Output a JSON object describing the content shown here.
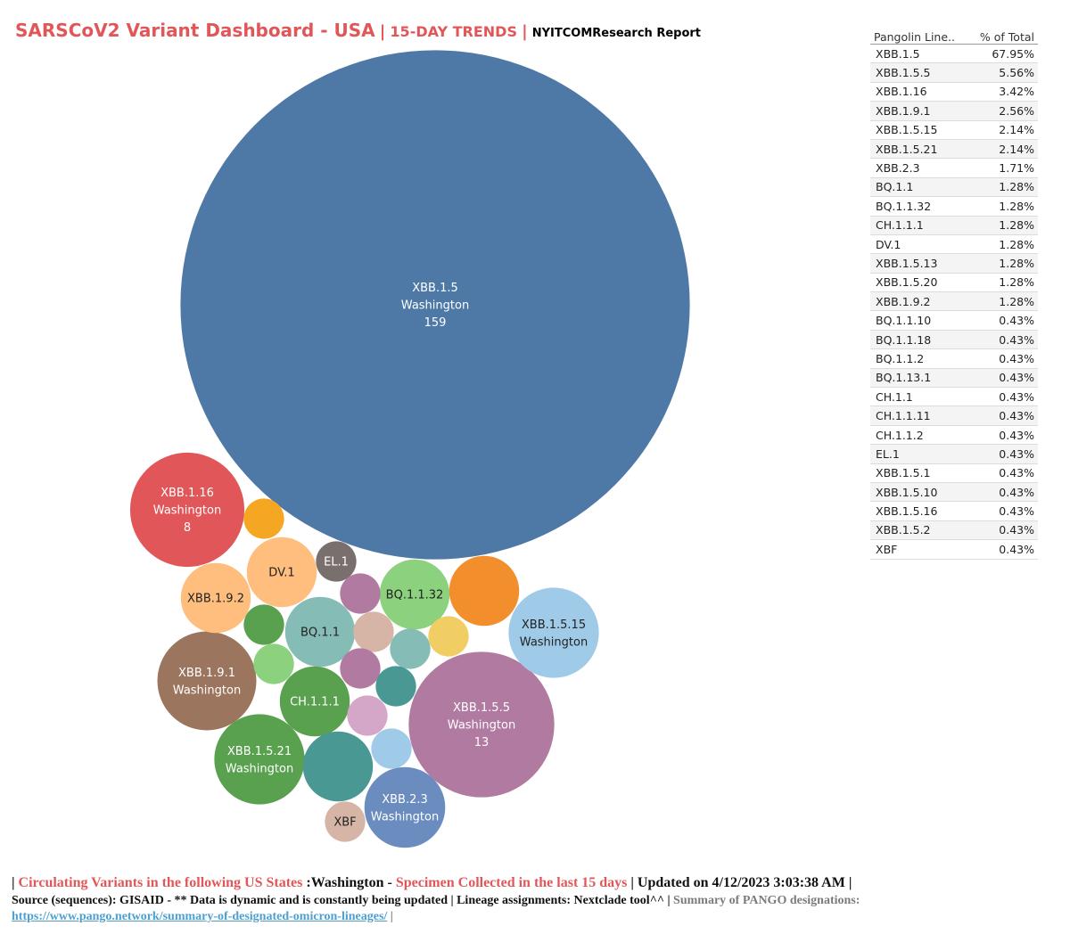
{
  "header": {
    "title": "SARSCoV2 Variant Dashboard - USA",
    "separator": "|",
    "trend": "15-DAY TRENDS",
    "report": "NYITCOMResearch Report"
  },
  "table": {
    "col_lineage": "Pangolin Line..",
    "col_pct": "% of Total",
    "rows": [
      {
        "lineage": "XBB.1.5",
        "pct": "67.95%"
      },
      {
        "lineage": "XBB.1.5.5",
        "pct": "5.56%"
      },
      {
        "lineage": "XBB.1.16",
        "pct": "3.42%"
      },
      {
        "lineage": "XBB.1.9.1",
        "pct": "2.56%"
      },
      {
        "lineage": "XBB.1.5.15",
        "pct": "2.14%"
      },
      {
        "lineage": "XBB.1.5.21",
        "pct": "2.14%"
      },
      {
        "lineage": "XBB.2.3",
        "pct": "1.71%"
      },
      {
        "lineage": "BQ.1.1",
        "pct": "1.28%"
      },
      {
        "lineage": "BQ.1.1.32",
        "pct": "1.28%"
      },
      {
        "lineage": "CH.1.1.1",
        "pct": "1.28%"
      },
      {
        "lineage": "DV.1",
        "pct": "1.28%"
      },
      {
        "lineage": "XBB.1.5.13",
        "pct": "1.28%"
      },
      {
        "lineage": "XBB.1.5.20",
        "pct": "1.28%"
      },
      {
        "lineage": "XBB.1.9.2",
        "pct": "1.28%"
      },
      {
        "lineage": "BQ.1.1.10",
        "pct": "0.43%"
      },
      {
        "lineage": "BQ.1.1.18",
        "pct": "0.43%"
      },
      {
        "lineage": "BQ.1.1.2",
        "pct": "0.43%"
      },
      {
        "lineage": "BQ.1.13.1",
        "pct": "0.43%"
      },
      {
        "lineage": "CH.1.1",
        "pct": "0.43%"
      },
      {
        "lineage": "CH.1.1.11",
        "pct": "0.43%"
      },
      {
        "lineage": "CH.1.1.2",
        "pct": "0.43%"
      },
      {
        "lineage": "EL.1",
        "pct": "0.43%"
      },
      {
        "lineage": "XBB.1.5.1",
        "pct": "0.43%"
      },
      {
        "lineage": "XBB.1.5.10",
        "pct": "0.43%"
      },
      {
        "lineage": "XBB.1.5.16",
        "pct": "0.43%"
      },
      {
        "lineage": "XBB.1.5.2",
        "pct": "0.43%"
      },
      {
        "lineage": "XBF",
        "pct": "0.43%"
      }
    ]
  },
  "chart_data": {
    "type": "bubble",
    "state": "Washington",
    "measure": "specimen count per Pango lineage (last 15 days)",
    "bubbles": [
      {
        "lineage": "XBB.1.5",
        "count": 159,
        "color": "#4e79a7",
        "text_color": "#ffffff",
        "labels": [
          "XBB.1.5",
          "Washington",
          "159"
        ]
      },
      {
        "lineage": "XBB.1.5.5",
        "count": 13,
        "color": "#b07aa1",
        "text_color": "#ffffff",
        "labels": [
          "XBB.1.5.5",
          "Washington",
          "13"
        ]
      },
      {
        "lineage": "XBB.1.16",
        "count": 8,
        "color": "#e15759",
        "text_color": "#ffffff",
        "labels": [
          "XBB.1.16",
          "Washington",
          "8"
        ]
      },
      {
        "lineage": "XBB.1.9.1",
        "count": 6,
        "color": "#9c755f",
        "text_color": "#ffffff",
        "labels": [
          "XBB.1.9.1",
          "Washington"
        ]
      },
      {
        "lineage": "XBB.1.5.15",
        "count": 5,
        "color": "#a0cbe8",
        "text_color": "#222222",
        "labels": [
          "XBB.1.5.15",
          "Washington"
        ]
      },
      {
        "lineage": "XBB.1.5.21",
        "count": 5,
        "color": "#59a14f",
        "text_color": "#ffffff",
        "labels": [
          "XBB.1.5.21",
          "Washington"
        ]
      },
      {
        "lineage": "XBB.2.3",
        "count": 4,
        "color": "#6a8cbf",
        "text_color": "#ffffff",
        "labels": [
          "XBB.2.3",
          "Washington"
        ]
      },
      {
        "lineage": "BQ.1.1",
        "count": 3,
        "color": "#86bcb6",
        "text_color": "#222222",
        "labels": [
          "BQ.1.1"
        ]
      },
      {
        "lineage": "BQ.1.1.32",
        "count": 3,
        "color": "#8cd17d",
        "text_color": "#222222",
        "labels": [
          "BQ.1.1.32"
        ]
      },
      {
        "lineage": "CH.1.1.1",
        "count": 3,
        "color": "#59a14f",
        "text_color": "#ffffff",
        "labels": [
          "CH.1.1.1"
        ]
      },
      {
        "lineage": "DV.1",
        "count": 3,
        "color": "#ffbe7d",
        "text_color": "#222222",
        "labels": [
          "DV.1"
        ]
      },
      {
        "lineage": "XBB.1.5.13",
        "count": 3,
        "color": "#f28e2b",
        "text_color": "#222222",
        "labels": []
      },
      {
        "lineage": "XBB.1.5.20",
        "count": 3,
        "color": "#499894",
        "text_color": "#222222",
        "labels": []
      },
      {
        "lineage": "XBB.1.9.2",
        "count": 3,
        "color": "#ffbe7d",
        "text_color": "#222222",
        "labels": [
          "XBB.1.9.2"
        ]
      },
      {
        "lineage": "EL.1",
        "count": 1,
        "color": "#79706e",
        "text_color": "#ffffff",
        "labels": [
          "EL.1"
        ]
      },
      {
        "lineage": "XBF",
        "count": 1,
        "color": "#d7b5a6",
        "text_color": "#222222",
        "labels": [
          "XBF"
        ]
      },
      {
        "lineage": "BQ.1.1.10",
        "count": 1,
        "color": "#f5a623",
        "text_color": "#222222",
        "labels": []
      },
      {
        "lineage": "BQ.1.1.18",
        "count": 1,
        "color": "#b07aa1",
        "text_color": "#222222",
        "labels": []
      },
      {
        "lineage": "BQ.1.1.2",
        "count": 1,
        "color": "#59a14f",
        "text_color": "#222222",
        "labels": []
      },
      {
        "lineage": "BQ.1.13.1",
        "count": 1,
        "color": "#8cd17d",
        "text_color": "#222222",
        "labels": []
      },
      {
        "lineage": "CH.1.1",
        "count": 1,
        "color": "#d7b5a6",
        "text_color": "#222222",
        "labels": []
      },
      {
        "lineage": "CH.1.1.11",
        "count": 1,
        "color": "#86bcb6",
        "text_color": "#222222",
        "labels": []
      },
      {
        "lineage": "CH.1.1.2",
        "count": 1,
        "color": "#f1ce63",
        "text_color": "#222222",
        "labels": []
      },
      {
        "lineage": "XBB.1.5.1",
        "count": 1,
        "color": "#b07aa1",
        "text_color": "#222222",
        "labels": []
      },
      {
        "lineage": "XBB.1.5.10",
        "count": 1,
        "color": "#499894",
        "text_color": "#222222",
        "labels": []
      },
      {
        "lineage": "XBB.1.5.16",
        "count": 1,
        "color": "#d4a6c8",
        "text_color": "#222222",
        "labels": []
      },
      {
        "lineage": "XBB.1.5.2",
        "count": 1,
        "color": "#a0cbe8",
        "text_color": "#222222",
        "labels": []
      }
    ]
  },
  "footer": {
    "pipe_open": "|",
    "circulating": "Circulating Variants in the following US States",
    "state": ":Washington -",
    "specimen": "Specimen Collected in the last 15 days",
    "updated": "| Updated on 4/12/2023 3:03:38 AM |",
    "source": "Source (sequences): GISAID - ** Data is dynamic and is constantly being updated | Lineage assignments: Nextclade tool^^ |",
    "summary": "Summary of PANGO designations:",
    "link": "https://www.pango.network/summary-of-designated-omicron-lineages/",
    "pipe_close": "|"
  }
}
